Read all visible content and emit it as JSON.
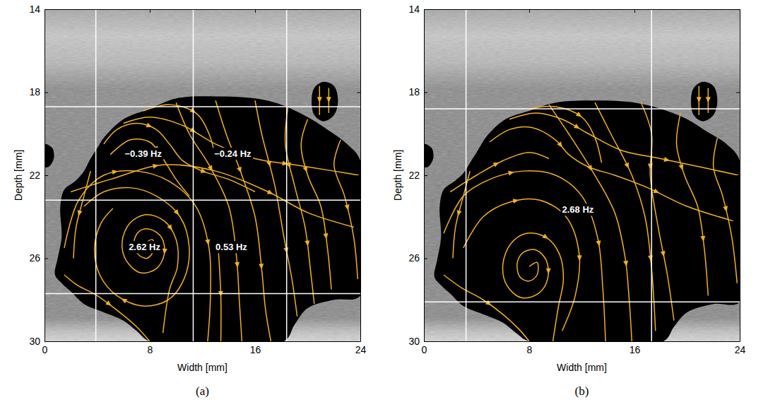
{
  "chart_data": [
    {
      "type": "streamline",
      "caption": "(a)",
      "x_label": "Width [mm]",
      "y_label": "Depth [mm]",
      "xlim": [
        0,
        24
      ],
      "ylim": [
        14,
        30
      ],
      "xticks": [
        0,
        8,
        16,
        24
      ],
      "yticks": [
        14,
        18,
        22,
        26,
        30
      ],
      "color": "#f2b01e",
      "partitions": {
        "x": [
          3.9,
          11.3,
          18.4
        ],
        "y": [
          18.7,
          23.2,
          27.7
        ]
      },
      "regions": [
        {
          "x": [
            4.0,
            4.5,
            6.0,
            8.0,
            10.0,
            13.0,
            16.0,
            18.0,
            20.0,
            21.5,
            23.0,
            24.0,
            24.0,
            22.0,
            20.0,
            19.0,
            18.2,
            8.0,
            7.0,
            6.0,
            4.5,
            3.0,
            2.0,
            1.3,
            0.8,
            1.0,
            1.3,
            1.2,
            1.5,
            2.3,
            3.0,
            3.5
          ],
          "y": [
            20.7,
            20.2,
            19.3,
            18.8,
            18.3,
            18.2,
            18.3,
            18.6,
            19.2,
            19.8,
            20.5,
            21.3,
            27.8,
            28.0,
            28.4,
            29.2,
            30.0,
            30.0,
            29.5,
            29.0,
            28.6,
            28.2,
            27.6,
            27.2,
            26.8,
            26.0,
            25.0,
            23.5,
            22.7,
            22.3,
            21.8,
            21.2
          ]
        },
        {
          "x": [
            20.3,
            20.5,
            21.2,
            22.0,
            22.3,
            22.0,
            21.2,
            20.5
          ],
          "y": [
            18.4,
            17.8,
            17.5,
            17.7,
            18.4,
            19.1,
            19.4,
            19.1
          ]
        },
        {
          "x": [
            0.0,
            0.6,
            0.7,
            0.3,
            0.0
          ],
          "y": [
            20.5,
            20.7,
            21.2,
            21.6,
            21.6
          ]
        }
      ],
      "streamlines": [
        {
          "x": [
            7.6,
            8.2,
            8.3,
            7.8,
            7.1,
            6.8,
            7.2,
            8.0,
            8.9,
            9.1,
            8.5,
            7.3,
            6.2,
            5.9,
            6.5,
            7.7,
            9.1,
            10.0,
            10.1,
            9.5,
            9.0
          ],
          "y": [
            25.3,
            25.1,
            25.6,
            26.0,
            25.8,
            25.2,
            24.7,
            24.6,
            25.0,
            25.8,
            26.5,
            26.7,
            26.1,
            25.2,
            24.3,
            23.9,
            24.2,
            25.1,
            26.4,
            27.5,
            29.6
          ]
        },
        {
          "x": [
            3.0,
            4.5,
            6.5,
            8.5,
            10.3,
            11.0,
            10.6,
            9.4,
            7.5,
            5.5,
            4.2,
            3.8,
            4.3,
            5.2
          ],
          "y": [
            23.5,
            22.8,
            22.6,
            23.0,
            24.0,
            25.5,
            27.0,
            28.0,
            28.3,
            27.8,
            26.8,
            25.5,
            24.3,
            23.6
          ]
        },
        {
          "x": [
            1.5,
            2.6,
            4.5,
            7.0,
            9.5,
            11.5,
            12.5,
            12.6,
            12.4
          ],
          "y": [
            25.5,
            23.2,
            22.0,
            21.8,
            22.3,
            23.5,
            25.5,
            28.0,
            30.0
          ]
        },
        {
          "x": [
            10.0,
            11.0,
            12.5,
            14.0,
            14.6,
            14.8,
            15.0
          ],
          "y": [
            18.5,
            20.0,
            21.5,
            23.5,
            26.0,
            28.0,
            30.0
          ]
        },
        {
          "x": [
            13.0,
            13.8,
            15.0,
            16.0,
            16.5,
            16.8,
            17.2
          ],
          "y": [
            18.4,
            20.0,
            22.0,
            24.0,
            26.5,
            28.5,
            30.0
          ]
        },
        {
          "x": [
            16.0,
            16.5,
            17.5,
            18.2,
            18.8,
            19.2
          ],
          "y": [
            18.4,
            20.0,
            22.5,
            25.0,
            27.0,
            28.8
          ]
        },
        {
          "x": [
            20.0,
            19.5,
            20.0,
            21.0,
            21.5,
            21.8
          ],
          "y": [
            19.3,
            20.5,
            22.0,
            23.5,
            25.5,
            27.5
          ]
        },
        {
          "x": [
            22.5,
            22.0,
            22.8,
            23.5,
            23.8
          ],
          "y": [
            20.3,
            21.5,
            23.0,
            25.0,
            27.0
          ]
        },
        {
          "x": [
            18.5,
            18.3,
            19.0,
            19.8,
            20.2,
            20.5
          ],
          "y": [
            18.7,
            20.5,
            22.5,
            24.5,
            26.5,
            28.2
          ]
        },
        {
          "x": [
            4.5,
            5.5,
            7.0,
            8.5,
            9.5,
            10.5,
            12.0,
            14.0,
            16.0
          ],
          "y": [
            20.5,
            19.8,
            19.5,
            19.8,
            20.5,
            21.3,
            21.8,
            22.2,
            22.8
          ]
        },
        {
          "x": [
            5.0,
            6.5,
            8.0,
            9.0,
            10.0,
            11.0
          ],
          "y": [
            21.0,
            20.3,
            20.4,
            21.2,
            22.2,
            23.0
          ]
        },
        {
          "x": [
            2.0,
            5.0,
            9.0,
            13.0,
            17.0,
            20.0,
            23.5
          ],
          "y": [
            22.8,
            22.2,
            21.5,
            21.8,
            22.8,
            23.8,
            24.5
          ]
        },
        {
          "x": [
            6.0,
            8.0,
            10.5,
            13.0,
            16.0,
            19.0,
            22.0,
            23.9
          ],
          "y": [
            19.5,
            19.2,
            19.6,
            20.5,
            21.2,
            21.5,
            21.8,
            22.0
          ]
        },
        {
          "x": [
            1.5,
            2.5,
            4.0,
            5.5,
            7.0,
            8.0
          ],
          "y": [
            26.8,
            27.3,
            27.8,
            28.5,
            29.3,
            30.0
          ]
        },
        {
          "x": [
            13.2,
            13.4,
            13.4
          ],
          "y": [
            25.5,
            27.8,
            30.0
          ]
        },
        {
          "x": [
            3.5,
            3.0,
            2.4,
            2.2
          ],
          "y": [
            21.8,
            23.0,
            24.5,
            26.0
          ]
        },
        {
          "x": [
            7.5,
            9.5,
            11.5,
            12.5,
            13.0
          ],
          "y": [
            18.9,
            18.6,
            19.0,
            20.0,
            21.2
          ]
        },
        {
          "x": [
            20.9,
            20.9
          ],
          "y": [
            17.7,
            19.1
          ]
        },
        {
          "x": [
            21.6,
            21.6
          ],
          "y": [
            17.8,
            19.0
          ]
        }
      ],
      "annotations": [
        {
          "text": "−0.39 Hz",
          "x": 7.5,
          "y": 21.0
        },
        {
          "text": "−0.24 Hz",
          "x": 14.3,
          "y": 21.0
        },
        {
          "text": "2.62 Hz",
          "x": 7.6,
          "y": 25.5
        },
        {
          "text": "0.53 Hz",
          "x": 14.2,
          "y": 25.5
        }
      ]
    },
    {
      "type": "streamline",
      "caption": "(b)",
      "x_label": "Width [mm]",
      "y_label": "Depth [mm]",
      "xlim": [
        0,
        24
      ],
      "ylim": [
        14,
        30
      ],
      "xticks": [
        0,
        8,
        16,
        24
      ],
      "yticks": [
        14,
        18,
        22,
        26,
        30
      ],
      "color": "#f2b01e",
      "partitions": {
        "x": [
          3.2,
          17.3
        ],
        "y": [
          18.8,
          28.1
        ]
      },
      "regions": [
        {
          "x": [
            4.0,
            4.8,
            6.2,
            8.0,
            10.0,
            13.0,
            16.0,
            18.0,
            20.0,
            21.5,
            23.0,
            24.0,
            24.0,
            22.0,
            20.0,
            19.0,
            18.2,
            8.0,
            7.0,
            6.0,
            4.5,
            3.0,
            2.0,
            1.3,
            0.8,
            1.0,
            1.3,
            1.2,
            1.5,
            2.3,
            3.0,
            3.5
          ],
          "y": [
            20.9,
            20.1,
            19.3,
            18.9,
            18.5,
            18.4,
            18.5,
            18.8,
            19.3,
            19.9,
            20.5,
            21.3,
            28.1,
            28.2,
            28.6,
            29.3,
            30.0,
            30.0,
            29.6,
            29.1,
            28.7,
            28.3,
            27.7,
            27.3,
            26.9,
            26.1,
            25.0,
            23.5,
            22.7,
            22.3,
            21.9,
            21.4
          ]
        },
        {
          "x": [
            20.3,
            20.5,
            21.2,
            22.0,
            22.3,
            22.0,
            21.2,
            20.5
          ],
          "y": [
            18.4,
            17.8,
            17.5,
            17.7,
            18.4,
            19.1,
            19.4,
            19.1
          ]
        },
        {
          "x": [
            0.0,
            0.6,
            0.7,
            0.3,
            0.0
          ],
          "y": [
            20.5,
            20.7,
            21.2,
            21.6,
            21.6
          ]
        }
      ],
      "streamlines": [
        {
          "x": [
            8.0,
            8.6,
            8.6,
            8.0,
            7.3,
            7.1,
            7.6,
            8.5,
            9.3,
            9.4,
            8.7,
            7.4,
            6.3,
            6.0,
            6.6,
            7.8,
            9.3,
            10.3,
            10.6,
            10.2,
            9.8
          ],
          "y": [
            26.4,
            26.2,
            26.8,
            27.1,
            26.9,
            26.2,
            25.7,
            25.6,
            26.1,
            27.0,
            27.7,
            27.9,
            27.3,
            26.3,
            25.3,
            24.8,
            25.0,
            25.8,
            27.0,
            28.4,
            30.0
          ]
        },
        {
          "x": [
            3.0,
            4.5,
            6.5,
            8.8,
            10.8,
            11.8,
            11.5,
            10.5
          ],
          "y": [
            25.5,
            24.0,
            23.3,
            23.2,
            24.0,
            25.8,
            27.8,
            29.5
          ]
        },
        {
          "x": [
            1.5,
            3.0,
            5.0,
            7.5,
            10.0,
            12.0,
            13.2,
            13.6,
            13.8
          ],
          "y": [
            24.8,
            23.0,
            22.2,
            21.8,
            22.0,
            23.0,
            25.0,
            27.5,
            30.0
          ]
        },
        {
          "x": [
            9.5,
            11.0,
            12.8,
            14.5,
            15.3,
            15.6,
            15.8
          ],
          "y": [
            18.6,
            20.0,
            21.8,
            23.8,
            26.0,
            28.0,
            30.0
          ]
        },
        {
          "x": [
            13.0,
            14.2,
            15.8,
            16.8,
            17.3,
            17.6
          ],
          "y": [
            18.5,
            20.0,
            22.0,
            24.0,
            26.5,
            29.5
          ]
        },
        {
          "x": [
            16.5,
            17.3,
            17.2,
            17.8,
            18.5,
            19.0
          ],
          "y": [
            18.5,
            20.0,
            22.0,
            24.5,
            26.8,
            29.0
          ]
        },
        {
          "x": [
            19.5,
            19.2,
            19.8,
            20.8,
            21.3,
            21.6
          ],
          "y": [
            19.0,
            20.5,
            22.0,
            23.5,
            25.5,
            27.8
          ]
        },
        {
          "x": [
            22.3,
            22.0,
            22.7,
            23.4,
            23.8
          ],
          "y": [
            20.2,
            21.6,
            23.0,
            25.0,
            27.2
          ]
        },
        {
          "x": [
            5.0,
            6.5,
            8.2,
            10.0,
            11.0,
            12.5,
            14.5,
            17.0,
            20.0,
            23.5
          ],
          "y": [
            20.4,
            19.8,
            19.7,
            20.3,
            21.0,
            21.6,
            22.0,
            22.6,
            23.5,
            24.2
          ]
        },
        {
          "x": [
            6.5,
            8.5,
            10.5,
            12.5,
            15.0,
            18.0,
            21.0,
            23.9
          ],
          "y": [
            19.3,
            19.0,
            19.3,
            20.0,
            20.8,
            21.2,
            21.6,
            22.0
          ]
        },
        {
          "x": [
            2.0,
            4.0,
            6.0,
            8.0,
            9.5
          ],
          "y": [
            22.8,
            22.0,
            21.3,
            20.9,
            21.2
          ]
        },
        {
          "x": [
            1.5,
            2.8,
            4.5,
            6.0,
            7.2,
            8.0
          ],
          "y": [
            26.8,
            27.4,
            28.0,
            28.7,
            29.4,
            30.0
          ]
        },
        {
          "x": [
            3.5,
            3.0,
            2.4,
            2.2
          ],
          "y": [
            21.8,
            23.0,
            24.5,
            26.0
          ]
        },
        {
          "x": [
            8.0,
            10.0,
            12.0,
            13.0,
            13.5
          ],
          "y": [
            18.8,
            18.7,
            19.2,
            20.2,
            21.4
          ]
        },
        {
          "x": [
            20.9,
            20.9
          ],
          "y": [
            17.7,
            19.1
          ]
        },
        {
          "x": [
            21.6,
            21.6
          ],
          "y": [
            17.8,
            19.0
          ]
        }
      ],
      "annotations": [
        {
          "text": "2.68 Hz",
          "x": 11.7,
          "y": 23.7
        }
      ]
    }
  ]
}
